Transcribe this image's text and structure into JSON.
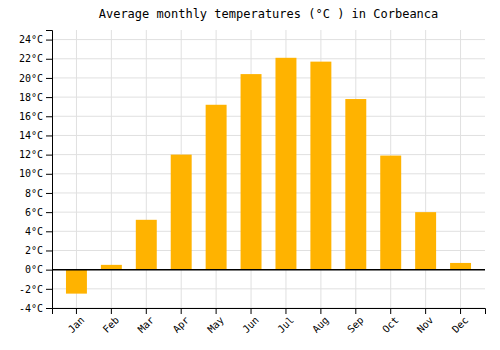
{
  "chart_data": {
    "type": "bar",
    "title": "Average monthly temperatures (°C ) in Corbeanca",
    "categories": [
      "Jan",
      "Feb",
      "Mar",
      "Apr",
      "May",
      "Jun",
      "Jul",
      "Aug",
      "Sep",
      "Oct",
      "Nov",
      "Dec"
    ],
    "values": [
      -2.5,
      0.5,
      5.2,
      12.0,
      17.2,
      20.4,
      22.1,
      21.7,
      17.8,
      11.9,
      6.0,
      0.7
    ],
    "color": "#FFB300",
    "ylim": [
      -4,
      25
    ],
    "yticks": [
      {
        "value": -4,
        "label": "-4°C"
      },
      {
        "value": -2,
        "label": "-2°C"
      },
      {
        "value": 0,
        "label": "0°C"
      },
      {
        "value": 2,
        "label": "2°C"
      },
      {
        "value": 4,
        "label": "4°C"
      },
      {
        "value": 6,
        "label": "6°C"
      },
      {
        "value": 8,
        "label": "8°C"
      },
      {
        "value": 10,
        "label": "10°C"
      },
      {
        "value": 12,
        "label": "12°C"
      },
      {
        "value": 14,
        "label": "14°C"
      },
      {
        "value": 16,
        "label": "16°C"
      },
      {
        "value": 18,
        "label": "18°C"
      },
      {
        "value": 20,
        "label": "20°C"
      },
      {
        "value": 22,
        "label": "22°C"
      },
      {
        "value": 24,
        "label": "24°C"
      }
    ],
    "grid": true
  }
}
